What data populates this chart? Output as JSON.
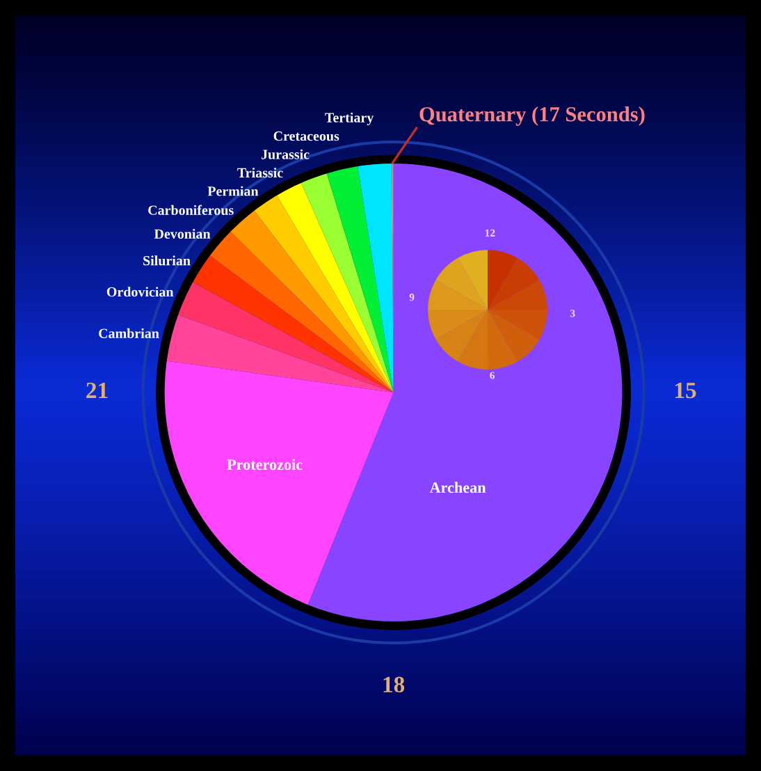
{
  "chart_data": {
    "type": "pie",
    "categories": [
      "Archean",
      "Proterozoic",
      "Cambrian",
      "Ordovician",
      "Silurian",
      "Devonian",
      "Carboniferous",
      "Permian",
      "Triassic",
      "Jurassic",
      "Cretaceous",
      "Tertiary",
      "Quaternary (17 Seconds)"
    ],
    "values": [
      56.1,
      21.1,
      3.3,
      2.5,
      2.2,
      2.2,
      2.2,
      1.9,
      1.9,
      1.9,
      2.2,
      2.4,
      0.1
    ],
    "colors": [
      "#8844ff",
      "#ff44ff",
      "#ff4499",
      "#ff3366",
      "#ff3300",
      "#ff6600",
      "#ff9900",
      "#ffcc00",
      "#ffff00",
      "#99ff33",
      "#00ee33",
      "#00e5ff",
      "#ff8080"
    ],
    "annotations": [
      "15",
      "18",
      "21",
      "12",
      "3",
      "6",
      "9"
    ],
    "legend": false
  }
}
